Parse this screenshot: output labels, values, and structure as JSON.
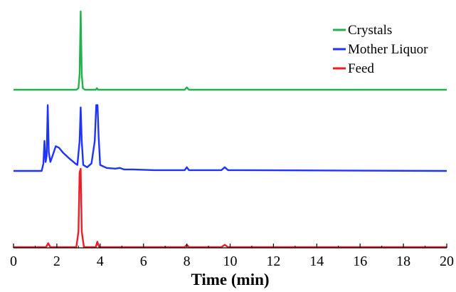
{
  "chart_data": {
    "type": "line",
    "title": "",
    "xlabel": "Time (min)",
    "ylabel": "",
    "xlim": [
      0,
      20
    ],
    "x_ticks": [
      0,
      2,
      4,
      6,
      8,
      10,
      12,
      14,
      16,
      18,
      20
    ],
    "grid": false,
    "legend_position": "top-right",
    "stacked_offset": true,
    "series": [
      {
        "name": "Crystals",
        "color": "#22b14c",
        "points": [
          [
            0,
            0
          ],
          [
            2.9,
            0
          ],
          [
            3.0,
            2
          ],
          [
            3.05,
            20
          ],
          [
            3.1,
            100
          ],
          [
            3.15,
            20
          ],
          [
            3.2,
            2
          ],
          [
            3.3,
            0
          ],
          [
            3.8,
            0
          ],
          [
            3.85,
            2
          ],
          [
            3.9,
            0
          ],
          [
            7.9,
            0
          ],
          [
            8.0,
            3
          ],
          [
            8.1,
            0
          ],
          [
            20,
            0
          ]
        ]
      },
      {
        "name": "Mother Liquor",
        "color": "#1f33ff",
        "points": [
          [
            0,
            0
          ],
          [
            1.3,
            0
          ],
          [
            1.38,
            10
          ],
          [
            1.43,
            40
          ],
          [
            1.48,
            12
          ],
          [
            1.53,
            20
          ],
          [
            1.58,
            88
          ],
          [
            1.63,
            25
          ],
          [
            1.7,
            12
          ],
          [
            1.8,
            20
          ],
          [
            1.95,
            33
          ],
          [
            2.1,
            31
          ],
          [
            2.3,
            24
          ],
          [
            2.6,
            16
          ],
          [
            2.85,
            10
          ],
          [
            2.95,
            8
          ],
          [
            3.05,
            40
          ],
          [
            3.1,
            85
          ],
          [
            3.15,
            40
          ],
          [
            3.22,
            8
          ],
          [
            3.4,
            5
          ],
          [
            3.6,
            10
          ],
          [
            3.75,
            40
          ],
          [
            3.82,
            88
          ],
          [
            3.88,
            88
          ],
          [
            3.93,
            45
          ],
          [
            4.0,
            8
          ],
          [
            4.3,
            4
          ],
          [
            4.7,
            3
          ],
          [
            4.9,
            4
          ],
          [
            5.1,
            2
          ],
          [
            5.5,
            2
          ],
          [
            6.5,
            1
          ],
          [
            7.9,
            1
          ],
          [
            8.0,
            5
          ],
          [
            8.1,
            1
          ],
          [
            9.6,
            1
          ],
          [
            9.75,
            5
          ],
          [
            9.9,
            1
          ],
          [
            10.3,
            1
          ],
          [
            20,
            0
          ]
        ]
      },
      {
        "name": "Feed",
        "color": "#ee1c24",
        "points": [
          [
            0,
            0
          ],
          [
            1.5,
            0
          ],
          [
            1.6,
            5
          ],
          [
            1.7,
            0
          ],
          [
            2.9,
            0
          ],
          [
            3.0,
            20
          ],
          [
            3.05,
            95
          ],
          [
            3.1,
            100
          ],
          [
            3.15,
            20
          ],
          [
            3.25,
            0
          ],
          [
            3.8,
            0
          ],
          [
            3.87,
            7
          ],
          [
            3.95,
            0
          ],
          [
            7.9,
            0
          ],
          [
            8.0,
            3
          ],
          [
            8.1,
            0
          ],
          [
            9.6,
            0
          ],
          [
            9.75,
            3
          ],
          [
            9.9,
            0
          ],
          [
            20,
            0
          ]
        ]
      }
    ]
  }
}
